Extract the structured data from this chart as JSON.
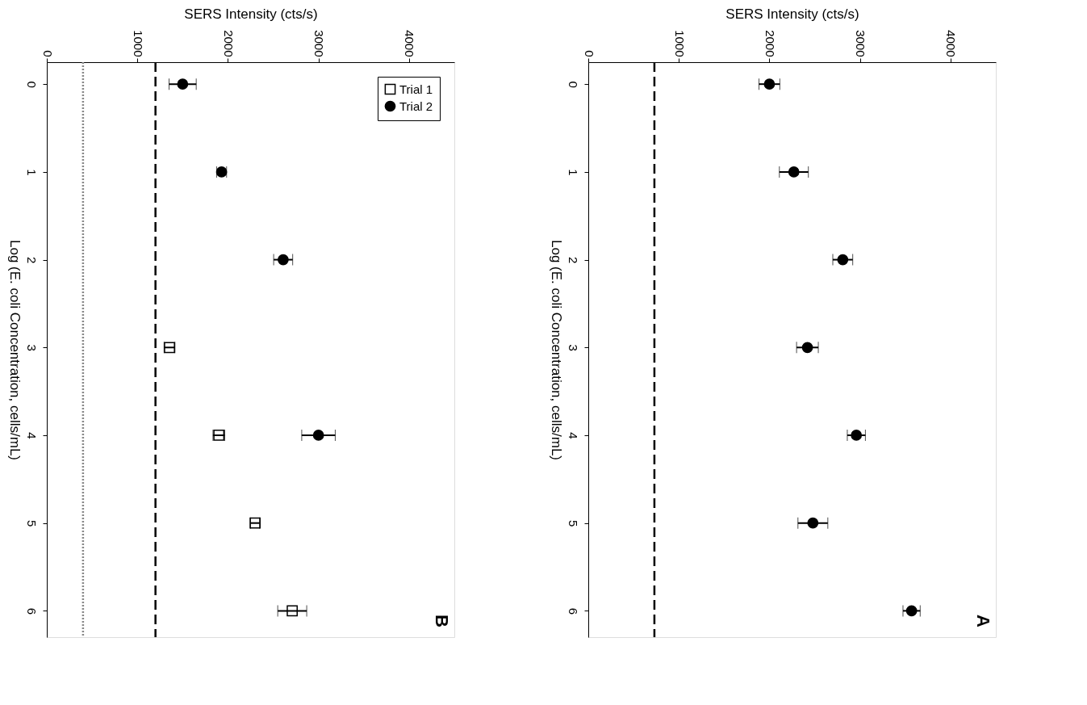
{
  "chart_data": [
    {
      "type": "scatter",
      "xlabel": "SERS Intensity (cts/s)",
      "ylabel": "Log (E. coli Concentration, cells/mL)",
      "xlim": [
        0,
        4500
      ],
      "xticks": [
        0,
        1000,
        2000,
        3000,
        4000
      ],
      "ylim": [
        6.3,
        -0.25
      ],
      "yticks": [
        0,
        1,
        2,
        3,
        4,
        5,
        6
      ],
      "grid": false,
      "legend": "top right",
      "annotations": [
        "B"
      ],
      "series": [
        {
          "name": "Trial 1",
          "color": "#000000",
          "marker": "square",
          "x": [
            1355,
            1900,
            2300,
            2710
          ],
          "values": [
            3,
            4,
            5,
            6
          ],
          "xerrors": [
            60,
            65,
            50,
            160
          ]
        },
        {
          "name": "Trial 2",
          "color": "#000000",
          "marker": "circle",
          "x": [
            1500,
            1930,
            2610,
            3000
          ],
          "values": [
            0,
            1,
            2,
            4
          ],
          "xerrors": [
            150,
            55,
            105,
            185
          ]
        }
      ],
      "ref_lines": [
        {
          "axis": "x",
          "value": 1200,
          "line_style": "dashed",
          "color": "#000000"
        },
        {
          "axis": "x",
          "value": 400,
          "line_style": "dotted",
          "color": "#888888"
        }
      ]
    },
    {
      "type": "scatter",
      "xlabel": "SERS Intensity (cts/s)",
      "ylabel": "Log (E. coli Concentration, cells/mL)",
      "xlim": [
        0,
        4500
      ],
      "xticks": [
        0,
        1000,
        2000,
        3000,
        4000
      ],
      "ylim": [
        6.3,
        -0.25
      ],
      "yticks": [
        0,
        1,
        2,
        3,
        4,
        5,
        6
      ],
      "grid": false,
      "annotations": [
        "A"
      ],
      "series": [
        {
          "color": "#000000",
          "marker": "circle",
          "x": [
            2000,
            2270,
            2810,
            2420,
            2960,
            2480,
            3570
          ],
          "values": [
            0,
            1,
            2,
            3,
            4,
            5,
            6
          ],
          "xerrors": [
            115,
            160,
            110,
            120,
            100,
            165,
            95
          ]
        }
      ],
      "ref_lines": [
        {
          "axis": "x",
          "value": 730,
          "line_style": "dashed",
          "color": "#000000"
        }
      ]
    }
  ]
}
